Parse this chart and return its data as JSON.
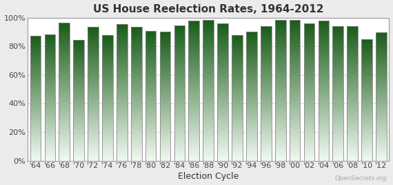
{
  "title": "US House Reelection Rates, 1964-2012",
  "xlabel": "Election Cycle",
  "years": [
    "'64",
    "'66",
    "'68",
    "'70",
    "'72",
    "'74",
    "'76",
    "'78",
    "'80",
    "'82",
    "'84",
    "'86",
    "'88",
    "'90",
    "'92",
    "'94",
    "'96",
    "'98",
    "'00",
    "'02",
    "'04",
    "'06",
    "'08",
    "'10",
    "'12"
  ],
  "values": [
    87.5,
    88.5,
    96.8,
    84.5,
    93.6,
    87.7,
    95.8,
    93.7,
    90.7,
    90.1,
    94.8,
    98.0,
    98.3,
    96.0,
    88.0,
    90.2,
    94.0,
    98.5,
    98.3,
    96.0,
    98.0,
    94.1,
    94.4,
    85.0,
    90.0
  ],
  "bar_color_top": "#1a5c1a",
  "bar_color_bottom": "#f0f8f0",
  "ylim": [
    0,
    100
  ],
  "yticks": [
    0,
    20,
    40,
    60,
    80,
    100
  ],
  "ytick_labels": [
    "0%",
    "20%",
    "40%",
    "60%",
    "80%",
    "100%"
  ],
  "background_color": "#ebebeb",
  "plot_bg_color": "#ffffff",
  "title_fontsize": 11,
  "axis_fontsize": 8,
  "watermark": "OpenSecrets.org",
  "bar_width": 0.75,
  "bar_edge_color": "#888888",
  "grid_color": "#cccccc"
}
